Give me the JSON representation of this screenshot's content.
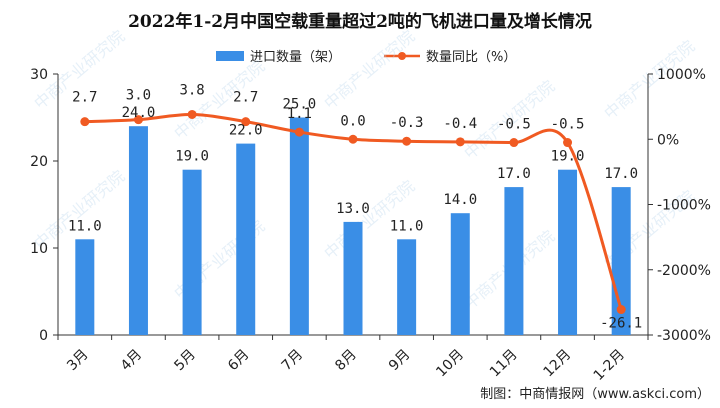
{
  "chart_data": {
    "type": "bar+line",
    "title": "2022年1-2月中国空载重量超过2吨的飞机进口量及增长情况",
    "categories": [
      "3月",
      "4月",
      "5月",
      "6月",
      "7月",
      "8月",
      "9月",
      "10月",
      "11月",
      "12月",
      "1-2月"
    ],
    "series": [
      {
        "name": "进口数量（架）",
        "type": "bar",
        "axis": "left",
        "values": [
          11.0,
          24.0,
          19.0,
          22.0,
          25.0,
          13.0,
          11.0,
          14.0,
          17.0,
          19.0,
          17.0
        ],
        "labels": [
          "11.0",
          "24.0",
          "19.0",
          "22.0",
          "25.0",
          "13.0",
          "11.0",
          "14.0",
          "17.0",
          "19.0",
          "17.0"
        ]
      },
      {
        "name": "数量同比（%）",
        "type": "line",
        "axis": "right",
        "values": [
          270,
          300,
          380,
          270,
          110,
          0,
          -30,
          -40,
          -50,
          -50,
          -2610
        ],
        "labels": [
          "2.7",
          "3.0",
          "3.8",
          "2.7",
          "1.1",
          "0.0",
          "-0.3",
          "-0.4",
          "-0.5",
          "-0.5",
          "-26.1"
        ]
      }
    ],
    "left_axis": {
      "min": 0,
      "max": 30,
      "ticks": [
        0,
        10,
        20,
        30
      ]
    },
    "right_axis": {
      "min": -3000,
      "max": 1000,
      "ticks": [
        1000,
        0,
        -1000,
        -2000,
        -3000
      ],
      "tick_labels": [
        "1000%",
        "0%",
        "-1000%",
        "-2000%",
        "-3000%"
      ]
    },
    "legend_position": "top",
    "colors": {
      "bar": "#3a8ee6",
      "line": "#f05a22",
      "text": "#222222"
    },
    "source": "制图：中商情报网（www.askci.com）",
    "watermark": "中商产业研究院"
  }
}
